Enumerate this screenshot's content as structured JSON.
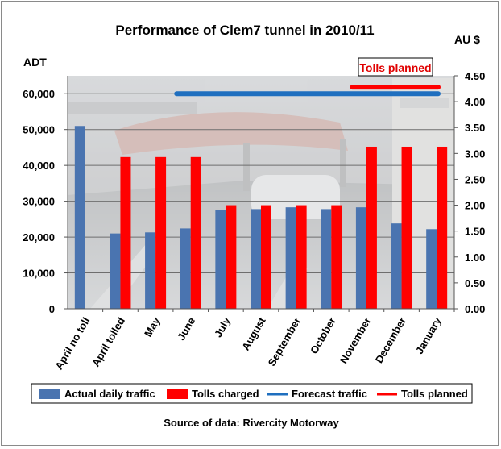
{
  "chart_data": {
    "type": "bar",
    "title": "Performance of Clem7 tunnel in 2010/11",
    "source": "Source of data: Rivercity Motorway",
    "y_left_label": "ADT",
    "y_right_label": "AU $",
    "y_left_ticks": [
      "0",
      "10,000",
      "20,000",
      "30,000",
      "40,000",
      "50,000",
      "60,000"
    ],
    "y_right_ticks": [
      "0.00",
      "0.50",
      "1.00",
      "1.50",
      "2.00",
      "2.50",
      "3.00",
      "3.50",
      "4.00",
      "4.50"
    ],
    "ylim_left": [
      0,
      65000
    ],
    "ylim_right": [
      0,
      4.5
    ],
    "grid": true,
    "legend_position": "bottom",
    "categories": [
      "April no toll",
      "April tolled",
      "May",
      "June",
      "July",
      "August",
      "September",
      "October",
      "November",
      "December",
      "January"
    ],
    "series": [
      {
        "name": "Actual daily traffic",
        "type": "bar",
        "axis": "left",
        "color": "#4a74b0",
        "values": [
          51000,
          21000,
          21300,
          22400,
          27600,
          27800,
          28300,
          27800,
          28300,
          23800,
          22200
        ]
      },
      {
        "name": "Tolls charged",
        "type": "bar",
        "axis": "right",
        "color": "#ff0000",
        "values": [
          null,
          2.93,
          2.93,
          2.93,
          2.0,
          2.0,
          2.0,
          2.0,
          3.13,
          3.13,
          3.13
        ]
      },
      {
        "name": "Forecast traffic",
        "type": "line",
        "axis": "left",
        "color": "#1f6fbf",
        "values": [
          null,
          null,
          null,
          60000,
          60000,
          60000,
          60000,
          60000,
          60000,
          60000,
          60000
        ]
      },
      {
        "name": "Tolls planned",
        "type": "line",
        "axis": "right",
        "color": "#ff0000",
        "values": [
          null,
          null,
          null,
          null,
          null,
          null,
          null,
          null,
          4.28,
          4.28,
          4.28
        ]
      }
    ],
    "annotations": [
      {
        "text": "Tolls planned",
        "color": "#e00000"
      }
    ]
  }
}
